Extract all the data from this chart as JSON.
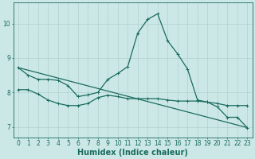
{
  "title": "",
  "xlabel": "Humidex (Indice chaleur)",
  "ylabel": "",
  "bg_color": "#cce8e6",
  "line_color": "#1a6b5e",
  "grid_color": "#b0d0ce",
  "xlim": [
    -0.5,
    23.5
  ],
  "ylim": [
    6.7,
    10.6
  ],
  "xticks": [
    0,
    1,
    2,
    3,
    4,
    5,
    6,
    7,
    8,
    9,
    10,
    11,
    12,
    13,
    14,
    15,
    16,
    17,
    18,
    19,
    20,
    21,
    22,
    23
  ],
  "yticks": [
    7,
    8,
    9,
    10
  ],
  "series": [
    {
      "x": [
        0,
        1,
        2,
        3,
        4,
        5,
        6,
        7,
        8,
        9,
        10,
        11,
        12,
        13,
        14,
        15,
        16,
        17,
        18,
        19,
        20,
        21,
        22,
        23
      ],
      "y": [
        8.72,
        8.5,
        8.38,
        8.38,
        8.35,
        8.2,
        7.88,
        7.93,
        8.0,
        8.38,
        8.55,
        8.75,
        9.72,
        10.12,
        10.28,
        9.5,
        9.12,
        8.68,
        7.78,
        7.72,
        7.58,
        7.28,
        7.28,
        6.98
      ],
      "marker": true
    },
    {
      "x": [
        0,
        1,
        2,
        3,
        4,
        5,
        6,
        7,
        8,
        9,
        10,
        11,
        12,
        13,
        14,
        15,
        16,
        17,
        18,
        19,
        20,
        21,
        22,
        23
      ],
      "y": [
        8.08,
        8.08,
        7.95,
        7.78,
        7.68,
        7.62,
        7.62,
        7.68,
        7.85,
        7.92,
        7.88,
        7.82,
        7.82,
        7.82,
        7.82,
        7.78,
        7.75,
        7.75,
        7.75,
        7.72,
        7.68,
        7.62,
        7.62,
        7.62
      ],
      "marker": true
    },
    {
      "x": [
        0,
        23
      ],
      "y": [
        8.72,
        6.98
      ],
      "marker": false
    }
  ],
  "markersize": 3.5,
  "linewidth": 0.9,
  "xlabel_fontsize": 7
}
